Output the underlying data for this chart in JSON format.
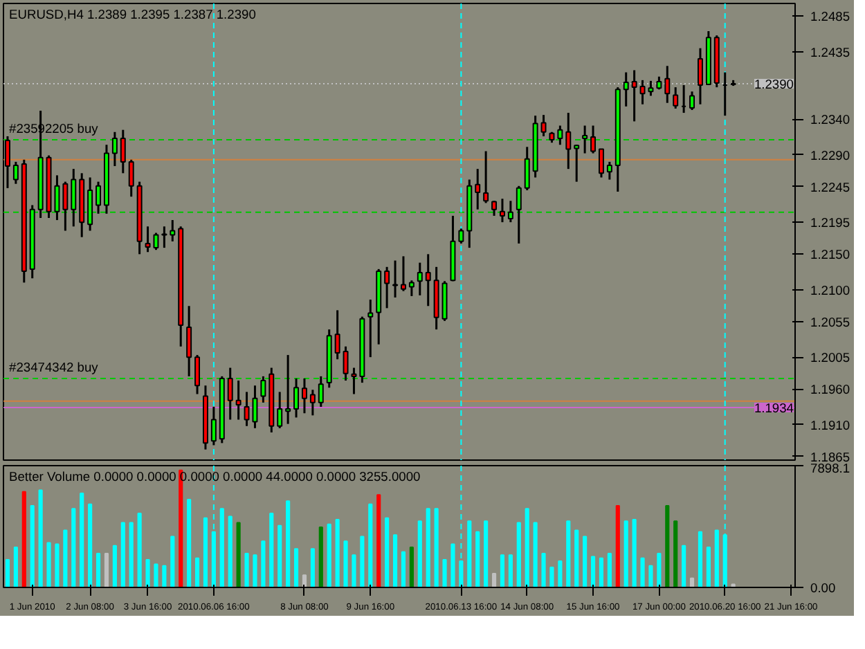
{
  "chart_data": [
    {
      "type": "candlestick",
      "title": "EURUSD,H4 1.2389 1.2395 1.2387 1.2390",
      "tick_labels": "y",
      "grid": false,
      "categories": [
        null,
        null,
        null,
        "1 Jun 2010",
        null,
        null,
        null,
        null,
        null,
        null,
        "2 Jun 08:00",
        null,
        null,
        null,
        null,
        null,
        null,
        "3 Jun 16:00",
        null,
        null,
        null,
        null,
        null,
        null,
        null,
        "2010.06.06 16:00",
        null,
        null,
        null,
        null,
        null,
        null,
        null,
        null,
        null,
        null,
        "8 Jun 08:00",
        null,
        null,
        null,
        null,
        null,
        null,
        null,
        "9 Jun 16:00",
        null,
        null,
        null,
        null,
        null,
        null,
        null,
        null,
        null,
        null,
        "2010.06.13 16:00",
        null,
        null,
        null,
        null,
        null,
        null,
        null,
        "14 Jun 08:00",
        null,
        null,
        null,
        null,
        null,
        null,
        null,
        "15 Jun 16:00",
        null,
        null,
        null,
        null,
        null,
        null,
        null,
        "17 Jun 00:00",
        null,
        null,
        null,
        null,
        null,
        null,
        null,
        "2010.06.20 16:00",
        null,
        null,
        null,
        null,
        null,
        null,
        null,
        "21 Jun 16:00"
      ],
      "ohlc": [
        [
          1.231,
          1.2316,
          1.2243,
          1.2274
        ],
        [
          1.2255,
          1.228,
          1.2249,
          1.2275
        ],
        [
          1.2277,
          1.2283,
          1.211,
          1.2126
        ],
        [
          1.2129,
          1.2219,
          1.2116,
          1.2213
        ],
        [
          1.2213,
          1.2352,
          1.2201,
          1.2286
        ],
        [
          1.2286,
          1.2289,
          1.2201,
          1.221
        ],
        [
          1.221,
          1.2261,
          1.2198,
          1.2246
        ],
        [
          1.2249,
          1.2252,
          1.2183,
          1.2213
        ],
        [
          1.2213,
          1.227,
          1.2189,
          1.2255
        ],
        [
          1.2255,
          1.2264,
          1.2174,
          1.2195
        ],
        [
          1.2192,
          1.2258,
          1.2183,
          1.224
        ],
        [
          1.2219,
          1.2252,
          1.2207,
          1.2246
        ],
        [
          1.2219,
          1.2304,
          1.2207,
          1.2292
        ],
        [
          1.2292,
          1.2322,
          1.2274,
          1.2313
        ],
        [
          1.2313,
          1.2325,
          1.2264,
          1.228
        ],
        [
          1.228,
          1.2283,
          1.2231,
          1.2246
        ],
        [
          1.2246,
          1.2252,
          1.215,
          1.2168
        ],
        [
          1.2165,
          1.2189,
          1.2153,
          1.216
        ],
        [
          1.2159,
          1.218,
          1.2156,
          1.2177
        ],
        [
          1.2177,
          1.2189,
          1.2159,
          1.2178
        ],
        [
          1.2177,
          1.2198,
          1.2168,
          1.2183
        ],
        [
          1.2186,
          1.2189,
          1.202,
          1.205
        ],
        [
          1.2047,
          1.2077,
          1.1978,
          1.2005
        ],
        [
          1.2005,
          1.2008,
          1.1953,
          1.1965
        ],
        [
          1.195,
          1.1965,
          1.1875,
          1.1884
        ],
        [
          1.1887,
          1.1935,
          1.1881,
          1.1917
        ],
        [
          1.189,
          1.1978,
          1.1884,
          1.1975
        ],
        [
          1.1975,
          1.199,
          1.1917,
          1.1944
        ],
        [
          1.1944,
          1.1972,
          1.1917,
          1.1938
        ],
        [
          1.1935,
          1.1956,
          1.1908,
          1.1917
        ],
        [
          1.1914,
          1.1965,
          1.1905,
          1.1947
        ],
        [
          1.195,
          1.1978,
          1.1941,
          1.1972
        ],
        [
          1.1981,
          1.199,
          1.1899,
          1.1908
        ],
        [
          1.1908,
          1.1956,
          1.1905,
          1.1932
        ],
        [
          1.1929,
          1.2008,
          1.1911,
          1.1932
        ],
        [
          1.1932,
          1.1975,
          1.192,
          1.1962
        ],
        [
          1.1961,
          1.1975,
          1.1926,
          1.1947
        ],
        [
          1.1952,
          1.1959,
          1.1923,
          1.1941
        ],
        [
          1.1941,
          1.1978,
          1.1935,
          1.1967
        ],
        [
          1.1969,
          1.2044,
          1.1962,
          1.2035
        ],
        [
          1.2037,
          1.2071,
          1.2002,
          1.2011
        ],
        [
          1.2013,
          1.202,
          1.1972,
          1.1982
        ],
        [
          1.1981,
          1.199,
          1.1953,
          1.1978
        ],
        [
          1.1978,
          1.2062,
          1.1969,
          1.2059
        ],
        [
          1.2062,
          1.2086,
          1.2005,
          1.2067
        ],
        [
          1.2068,
          1.2129,
          1.2023,
          1.2126
        ],
        [
          1.2126,
          1.2132,
          1.2074,
          1.2109
        ],
        [
          1.2107,
          1.2141,
          1.2089,
          1.2106
        ],
        [
          1.2107,
          1.2147,
          1.2098,
          1.2101
        ],
        [
          1.2104,
          1.2113,
          1.2091,
          1.211
        ],
        [
          1.2112,
          1.2138,
          1.2092,
          1.2124
        ],
        [
          1.2124,
          1.215,
          1.2077,
          1.2113
        ],
        [
          1.2113,
          1.2132,
          1.2044,
          1.2061
        ],
        [
          1.2059,
          1.2112,
          1.2056,
          1.2109
        ],
        [
          1.2113,
          1.2204,
          1.2112,
          1.2168
        ],
        [
          1.2168,
          1.2186,
          1.2165,
          1.2183
        ],
        [
          1.2183,
          1.2255,
          1.2159,
          1.2246
        ],
        [
          1.2248,
          1.227,
          1.2213,
          1.2237
        ],
        [
          1.2236,
          1.2295,
          1.2222,
          1.2225
        ],
        [
          1.2224,
          1.2225,
          1.2204,
          1.2213
        ],
        [
          1.221,
          1.2228,
          1.2195,
          1.2204
        ],
        [
          1.22,
          1.2225,
          1.2195,
          1.2209
        ],
        [
          1.2213,
          1.2246,
          1.2165,
          1.2243
        ],
        [
          1.2243,
          1.2301,
          1.224,
          1.2284
        ],
        [
          1.2267,
          1.2345,
          1.2258,
          1.2334
        ],
        [
          1.2335,
          1.2346,
          1.2316,
          1.2322
        ],
        [
          1.232,
          1.2322,
          1.2307,
          1.2311
        ],
        [
          1.2313,
          1.2331,
          1.2304,
          1.2325
        ],
        [
          1.2322,
          1.2349,
          1.227,
          1.2298
        ],
        [
          1.2299,
          1.2304,
          1.2252,
          1.2303
        ],
        [
          1.2313,
          1.2331,
          1.2292,
          1.2317
        ],
        [
          1.2315,
          1.2331,
          1.2292,
          1.2295
        ],
        [
          1.2298,
          1.2298,
          1.2258,
          1.2264
        ],
        [
          1.2266,
          1.228,
          1.2255,
          1.2275
        ],
        [
          1.2275,
          1.2385,
          1.2238,
          1.2382
        ],
        [
          1.2382,
          1.2406,
          1.2358,
          1.2392
        ],
        [
          1.2393,
          1.2409,
          1.2337,
          1.2385
        ],
        [
          1.2386,
          1.2395,
          1.2361,
          1.2376
        ],
        [
          1.2379,
          1.2394,
          1.2373,
          1.2384
        ],
        [
          1.2384,
          1.24,
          1.2382,
          1.2393
        ],
        [
          1.2397,
          1.2415,
          1.2363,
          1.2376
        ],
        [
          1.2374,
          1.2385,
          1.2355,
          1.2359
        ],
        [
          1.2358,
          1.2388,
          1.2349,
          1.2358
        ],
        [
          1.2356,
          1.2379,
          1.2353,
          1.2373
        ],
        [
          1.2425,
          1.244,
          1.2361,
          1.2388
        ],
        [
          1.2389,
          1.2464,
          1.2388,
          1.2455
        ],
        [
          1.2455,
          1.2458,
          1.2385,
          1.2391
        ],
        [
          1.2388,
          1.2406,
          1.2345,
          1.2388
        ],
        [
          1.2389,
          1.2395,
          1.2387,
          1.239
        ],
        null,
        null,
        null,
        null,
        null,
        null,
        null
      ],
      "ylim": [
        1.186,
        1.2503
      ],
      "yticks": [
        1.2485,
        1.2435,
        {
          "value": 1.234,
          "label": "1.2340"
        },
        {
          "value": 1.229,
          "label": "1.2290"
        },
        1.2245,
        1.2195,
        {
          "value": 1.215,
          "label": "1.2150"
        },
        {
          "value": 1.21,
          "label": "1.2100"
        },
        1.2055,
        1.2005,
        {
          "value": 1.196,
          "label": "1.1960"
        },
        {
          "value": 1.191,
          "label": "1.1910"
        },
        1.1865
      ],
      "ref_lines": [
        {
          "axis": "y",
          "value": 1.2311,
          "label": "#23592205 buy",
          "color": "#00c800",
          "line_style": "dashed"
        },
        {
          "axis": "y",
          "value": 1.2209,
          "color": "#00c800",
          "line_style": "dashed"
        },
        {
          "axis": "y",
          "value": 1.1975,
          "label": "#23474342 buy",
          "color": "#00c800",
          "line_style": "dashed"
        },
        {
          "axis": "y",
          "value": 1.2283,
          "color": "#d08040"
        },
        {
          "axis": "y",
          "value": 1.1943,
          "color": "#d08040"
        },
        {
          "axis": "y",
          "value": 1.239,
          "label": "1.2390",
          "color": "#c0c0c0",
          "line_style": "dotted"
        },
        {
          "axis": "y",
          "value": 1.1934,
          "label": "1.1934",
          "color": "#cc66cc"
        },
        {
          "axis": "x",
          "value": "2010.06.06 16:00",
          "color": "#00ffff",
          "line_style": "dashed"
        },
        {
          "axis": "x",
          "value": "2010.06.13 16:00",
          "color": "#00ffff",
          "line_style": "dashed"
        },
        {
          "axis": "x",
          "value": "2010.06.20 16:00",
          "color": "#00ffff",
          "line_style": "dashed"
        }
      ]
    },
    {
      "type": "bar",
      "title": "Better Volume 0.0000 0.0000 0.0000 0.0000 44.0000 0.0000 3255.0000",
      "grid": false,
      "categories": [
        null,
        null,
        null,
        "1 Jun 2010",
        null,
        null,
        null,
        null,
        null,
        null,
        "2 Jun 08:00",
        null,
        null,
        null,
        null,
        null,
        null,
        "3 Jun 16:00",
        null,
        null,
        null,
        null,
        null,
        null,
        null,
        "2010.06.06 16:00",
        null,
        null,
        null,
        null,
        null,
        null,
        null,
        null,
        null,
        null,
        "8 Jun 08:00",
        null,
        null,
        null,
        null,
        null,
        null,
        null,
        "9 Jun 16:00",
        null,
        null,
        null,
        null,
        null,
        null,
        null,
        null,
        null,
        null,
        "2010.06.13 16:00",
        null,
        null,
        null,
        null,
        null,
        null,
        null,
        "14 Jun 08:00",
        null,
        null,
        null,
        null,
        null,
        null,
        null,
        "15 Jun 16:00",
        null,
        null,
        null,
        null,
        null,
        null,
        null,
        "17 Jun 00:00",
        null,
        null,
        null,
        null,
        null,
        null,
        null,
        "2010.06.20 16:00",
        null,
        null,
        null,
        null,
        null,
        null,
        null,
        "21 Jun 16:00"
      ],
      "values": [
        1800,
        2600,
        6200,
        5300,
        6300,
        2900,
        2800,
        3700,
        5100,
        6100,
        5400,
        2200,
        2200,
        2700,
        4200,
        4200,
        4800,
        1800,
        1500,
        1400,
        3300,
        7600,
        5700,
        1900,
        4500,
        3600,
        5100,
        4600,
        4200,
        2200,
        2100,
        3000,
        4800,
        4000,
        5600,
        2500,
        800,
        2500,
        3900,
        4100,
        4400,
        3000,
        2100,
        3300,
        5400,
        6000,
        4500,
        3400,
        2300,
        2600,
        4300,
        5100,
        5100,
        1800,
        2800,
        1700,
        4300,
        3600,
        4300,
        900,
        2100,
        2100,
        4200,
        5100,
        4200,
        2200,
        1300,
        1700,
        4300,
        3700,
        3300,
        2000,
        1900,
        2200,
        5300,
        4300,
        4400,
        1900,
        1400,
        2200,
        5300,
        4300,
        2700,
        600,
        3600,
        2600,
        3700,
        3400,
        200,
        null,
        null,
        null,
        null,
        null,
        null,
        null
      ],
      "colors": [
        "#00ffff",
        "#00ffff",
        "#ff0000",
        "#00ffff",
        "#00ffff",
        "#00ffff",
        "#00ffff",
        "#00ffff",
        "#00ffff",
        "#00ffff",
        "#00ffff",
        "#00ffff",
        "#c0c0c0",
        "#00ffff",
        "#00ffff",
        "#00ffff",
        "#00ffff",
        "#00ffff",
        "#00ffff",
        "#00ffff",
        "#00ffff",
        "#ff0000",
        "#00ffff",
        "#00ffff",
        "#00ffff",
        "#00ffff",
        "#00ffff",
        "#00ffff",
        "#008000",
        "#00ffff",
        "#00ffff",
        "#00ffff",
        "#00ffff",
        "#00ffff",
        "#00ffff",
        "#00ffff",
        "#c0c0c0",
        "#00ffff",
        "#008000",
        "#00ffff",
        "#00ffff",
        "#00ffff",
        "#00ffff",
        "#00ffff",
        "#00ffff",
        "#ff0000",
        "#00ffff",
        "#00ffff",
        "#00ffff",
        "#008000",
        "#00ffff",
        "#00ffff",
        "#00ffff",
        "#00ffff",
        "#00ffff",
        "#00ffff",
        "#00ffff",
        "#00ffff",
        "#00ffff",
        "#c0c0c0",
        "#00ffff",
        "#00ffff",
        "#00ffff",
        "#00ffff",
        "#00ffff",
        "#00ffff",
        "#00ffff",
        "#00ffff",
        "#00ffff",
        "#00ffff",
        "#00ffff",
        "#00ffff",
        "#00ffff",
        "#00ffff",
        "#ff0000",
        "#00ffff",
        "#00ffff",
        "#00ffff",
        "#00ffff",
        "#00ffff",
        "#008000",
        "#008000",
        "#00ffff",
        "#c0c0c0",
        "#00ffff",
        "#00ffff",
        "#00ffff",
        "#00ffff",
        "#c0c0c0",
        null,
        null,
        null,
        null,
        null,
        null,
        null
      ],
      "ylim": [
        0,
        7898.1
      ],
      "yticks": [
        {
          "value": 0,
          "label": "0.00"
        },
        7898.1
      ],
      "ref_lines": [
        {
          "axis": "x",
          "value": "2010.06.06 16:00",
          "color": "#00ffff",
          "line_style": "dashed"
        },
        {
          "axis": "x",
          "value": "2010.06.13 16:00",
          "color": "#00ffff",
          "line_style": "dashed"
        },
        {
          "axis": "x",
          "value": "2010.06.20 16:00",
          "color": "#00ffff",
          "line_style": "dashed"
        }
      ]
    }
  ]
}
